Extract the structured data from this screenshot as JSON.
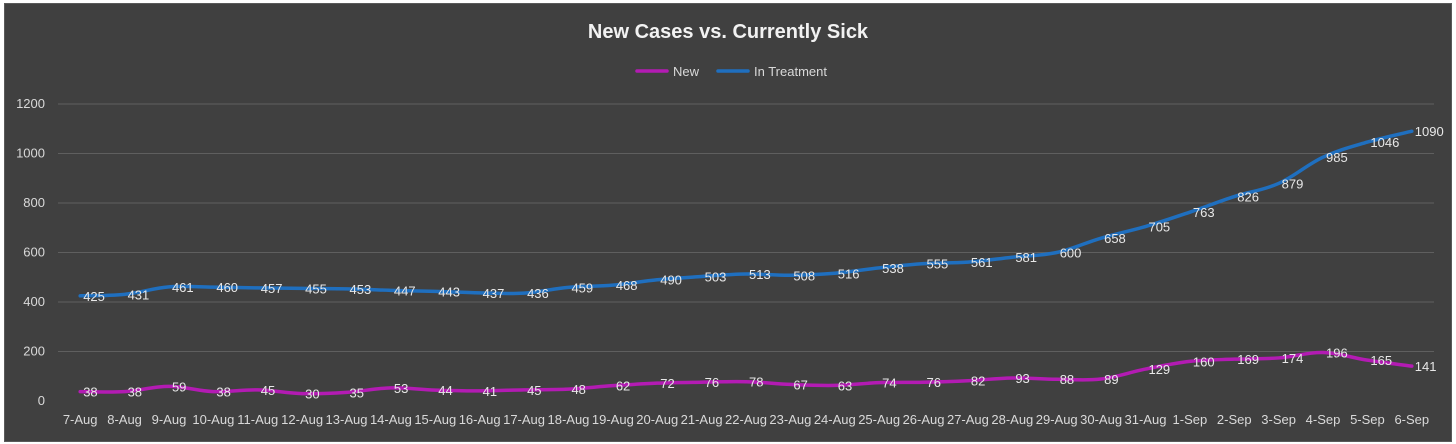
{
  "chart_data": {
    "type": "line",
    "title": "New Cases vs. Currently Sick",
    "categories": [
      "7-Aug",
      "8-Aug",
      "9-Aug",
      "10-Aug",
      "11-Aug",
      "12-Aug",
      "13-Aug",
      "14-Aug",
      "15-Aug",
      "16-Aug",
      "17-Aug",
      "18-Aug",
      "19-Aug",
      "20-Aug",
      "21-Aug",
      "22-Aug",
      "23-Aug",
      "24-Aug",
      "25-Aug",
      "26-Aug",
      "27-Aug",
      "28-Aug",
      "29-Aug",
      "30-Aug",
      "31-Aug",
      "1-Sep",
      "2-Sep",
      "3-Sep",
      "4-Sep",
      "5-Sep",
      "6-Sep"
    ],
    "series": [
      {
        "name": "New",
        "color": "#b31bb3",
        "values": [
          38,
          38,
          59,
          38,
          45,
          30,
          35,
          53,
          44,
          41,
          45,
          48,
          62,
          72,
          76,
          78,
          67,
          63,
          74,
          76,
          82,
          93,
          88,
          89,
          129,
          160,
          169,
          174,
          196,
          165,
          141
        ]
      },
      {
        "name": "In Treatment",
        "color": "#1f6fbf",
        "values": [
          425,
          431,
          461,
          460,
          457,
          455,
          453,
          447,
          443,
          437,
          436,
          459,
          468,
          490,
          503,
          513,
          508,
          516,
          538,
          555,
          561,
          581,
          600,
          658,
          705,
          763,
          826,
          879,
          985,
          1046,
          1090
        ]
      }
    ],
    "ylim": [
      0,
      1200
    ],
    "yticks": [
      0,
      200,
      400,
      600,
      800,
      1000,
      1200
    ],
    "grid": true,
    "legend": "top",
    "xlabel": "",
    "ylabel": ""
  }
}
